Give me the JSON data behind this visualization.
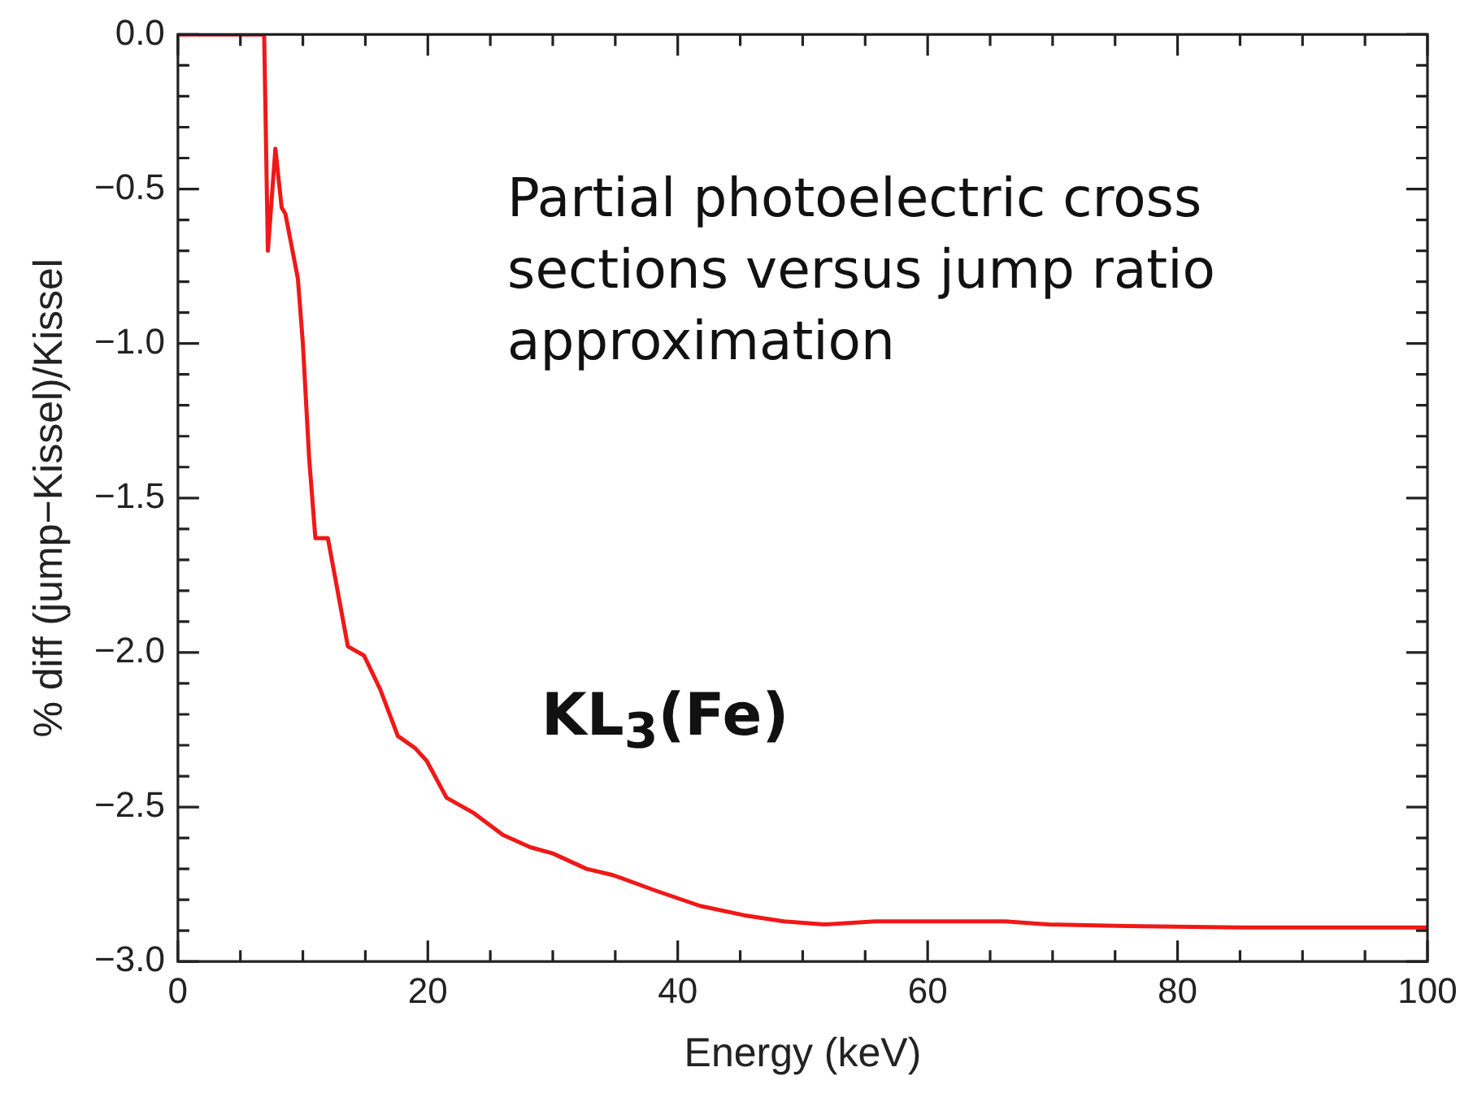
{
  "chart_data": {
    "type": "line",
    "xlabel": "Energy (keV)",
    "ylabel": "% diff (jump−Kissel)/Kissel",
    "annotations": [
      "Partial photoelectric cross sections versus  jump ratio approximation",
      "KL$_{3}$(Fe)"
    ],
    "series": [
      {
        "color": "#f01818",
        "x": [
          0,
          6.9,
          7.2,
          7.8,
          8.3,
          8.6,
          9.6,
          10.0,
          10.5,
          11.0,
          12.0,
          13.6,
          14.9,
          16.2,
          17.6,
          19.0,
          19.9,
          21.5,
          23.7,
          26,
          28.2,
          30,
          32.7,
          34.8,
          38.2,
          41.8,
          45.3,
          48.5,
          51.7,
          55.8,
          62.5,
          66.2,
          69.7,
          76,
          85,
          100
        ],
        "values": [
          0,
          0,
          -0.7,
          -0.37,
          -0.56,
          -0.58,
          -0.79,
          -1.0,
          -1.37,
          -1.63,
          -1.63,
          -1.98,
          -2.01,
          -2.12,
          -2.27,
          -2.31,
          -2.35,
          -2.47,
          -2.52,
          -2.59,
          -2.63,
          -2.65,
          -2.7,
          -2.72,
          -2.77,
          -2.82,
          -2.85,
          -2.87,
          -2.88,
          -2.87,
          -2.87,
          -2.87,
          -2.88,
          -2.885,
          -2.89,
          -2.89
        ]
      }
    ],
    "xlim": [
      0,
      100
    ],
    "xticks": [
      0,
      {
        "value": 5,
        "label": null
      },
      {
        "value": 10,
        "label": null
      },
      {
        "value": 15,
        "label": null
      },
      20,
      {
        "value": 25,
        "label": null
      },
      {
        "value": 30,
        "label": null
      },
      {
        "value": 35,
        "label": null
      },
      40,
      {
        "value": 45,
        "label": null
      },
      {
        "value": 50,
        "label": null
      },
      {
        "value": 55,
        "label": null
      },
      60,
      {
        "value": 65,
        "label": null
      },
      {
        "value": 70,
        "label": null
      },
      {
        "value": 75,
        "label": null
      },
      80,
      {
        "value": 85,
        "label": null
      },
      {
        "value": 90,
        "label": null
      },
      {
        "value": 95,
        "label": null
      },
      100
    ],
    "ylim": [
      -3,
      0
    ],
    "yticks": [
      {
        "value": -3,
        "label": "−3.0"
      },
      {
        "value": -2.9,
        "label": null
      },
      {
        "value": -2.8,
        "label": null
      },
      {
        "value": -2.7,
        "label": null
      },
      {
        "value": -2.6,
        "label": null
      },
      {
        "value": -2.5,
        "label": "−2.5"
      },
      {
        "value": -2.4,
        "label": null
      },
      {
        "value": -2.3,
        "label": null
      },
      {
        "value": -2.2,
        "label": null
      },
      {
        "value": -2.1,
        "label": null
      },
      {
        "value": -2,
        "label": "−2.0"
      },
      {
        "value": -1.9,
        "label": null
      },
      {
        "value": -1.8,
        "label": null
      },
      {
        "value": -1.7,
        "label": null
      },
      {
        "value": -1.6,
        "label": null
      },
      {
        "value": -1.5,
        "label": "−1.5"
      },
      {
        "value": -1.4,
        "label": null
      },
      {
        "value": -1.3,
        "label": null
      },
      {
        "value": -1.2,
        "label": null
      },
      {
        "value": -1.1,
        "label": null
      },
      {
        "value": -1,
        "label": "−1.0"
      },
      {
        "value": -0.9,
        "label": null
      },
      {
        "value": -0.8,
        "label": null
      },
      {
        "value": -0.7,
        "label": null
      },
      {
        "value": -0.6,
        "label": null
      },
      {
        "value": -0.5,
        "label": "−0.5"
      },
      {
        "value": -0.4,
        "label": null
      },
      {
        "value": -0.3,
        "label": null
      },
      {
        "value": -0.2,
        "label": null
      },
      {
        "value": -0.1,
        "label": null
      },
      {
        "value": 0,
        "label": "0.0"
      }
    ],
    "grid": false,
    "legend": false,
    "marker": "none",
    "line_style": "solid"
  }
}
